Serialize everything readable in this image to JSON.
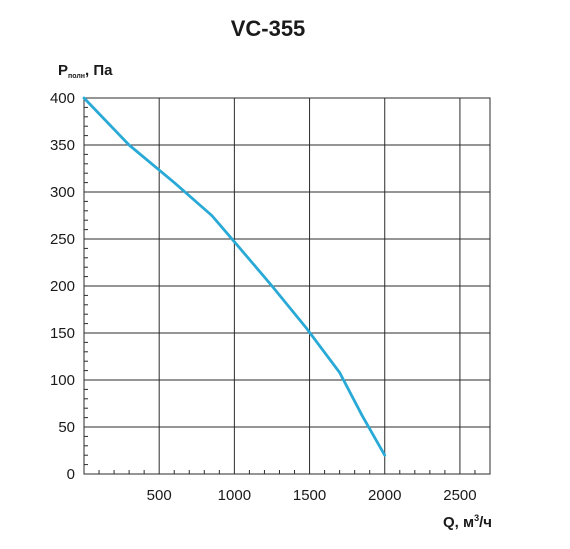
{
  "chart_data": {
    "type": "line",
    "title": "VC-355",
    "ylabel": {
      "main": "P",
      "sub": "полн",
      "suffix": ", Па"
    },
    "xlabel": {
      "main": "Q, м",
      "sup": "3",
      "suffix": "/ч"
    },
    "xlim": [
      0,
      2700
    ],
    "ylim": [
      0,
      400
    ],
    "xticks": [
      500,
      1000,
      1500,
      2000,
      2500
    ],
    "yticks": [
      0,
      50,
      100,
      150,
      200,
      250,
      300,
      350,
      400
    ],
    "grid": true,
    "series": [
      {
        "color": "#29a9d6",
        "points": [
          {
            "x": 0,
            "y": 400
          },
          {
            "x": 300,
            "y": 350
          },
          {
            "x": 600,
            "y": 310
          },
          {
            "x": 850,
            "y": 275
          },
          {
            "x": 1000,
            "y": 247
          },
          {
            "x": 1250,
            "y": 200
          },
          {
            "x": 1480,
            "y": 155
          },
          {
            "x": 1700,
            "y": 108
          },
          {
            "x": 1850,
            "y": 62
          },
          {
            "x": 2000,
            "y": 20
          }
        ]
      }
    ]
  }
}
